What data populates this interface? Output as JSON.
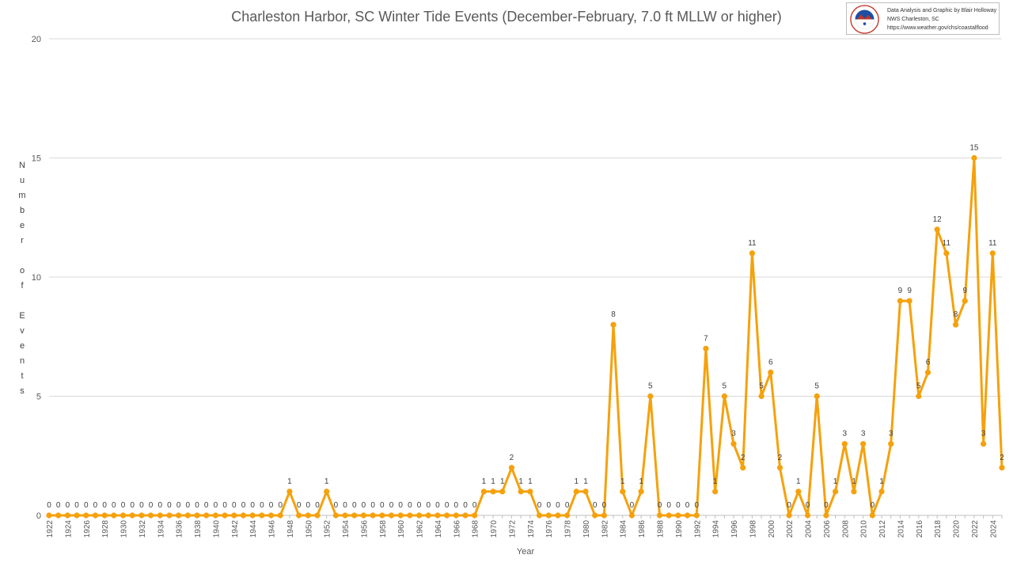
{
  "chart_data": {
    "type": "line",
    "title": "Charleston Harbor, SC Winter Tide Events (December-February, 7.0 ft MLLW or higher)",
    "xlabel": "Year",
    "ylabel": "Number of Events",
    "ylim": [
      0,
      20
    ],
    "yticks": [
      0,
      5,
      10,
      15,
      20
    ],
    "grid": "horizontal",
    "legend": "none",
    "line_color": "#F5A10C",
    "x_start": 1922,
    "x_end": 2025,
    "x_tick_labels": [
      "1922",
      "1924",
      "1926",
      "1928",
      "1930",
      "1932",
      "1934",
      "1936",
      "1938",
      "1940",
      "1942",
      "1944",
      "1946",
      "1948",
      "1950",
      "1952",
      "1954",
      "1956",
      "1958",
      "1960",
      "1962",
      "1964",
      "1966",
      "1968",
      "1970",
      "1972",
      "1974",
      "1976",
      "1978",
      "1980",
      "1982",
      "1984",
      "1986",
      "1988",
      "1990",
      "1992",
      "1994",
      "1996",
      "1998",
      "2000",
      "2002",
      "2004",
      "2006",
      "2008",
      "2010",
      "2012",
      "2014",
      "2016",
      "2018",
      "2020",
      "2022",
      "2024"
    ],
    "series": [
      {
        "values": [
          0,
          0,
          0,
          0,
          0,
          0,
          0,
          0,
          0,
          0,
          0,
          0,
          0,
          0,
          0,
          0,
          0,
          0,
          0,
          0,
          0,
          0,
          0,
          0,
          0,
          0,
          1,
          0,
          0,
          0,
          1,
          0,
          0,
          0,
          0,
          0,
          0,
          0,
          0,
          0,
          0,
          0,
          0,
          0,
          0,
          0,
          0,
          1,
          1,
          1,
          2,
          1,
          1,
          0,
          0,
          0,
          0,
          1,
          1,
          0,
          0,
          8,
          1,
          0,
          1,
          5,
          0,
          0,
          0,
          0,
          0,
          7,
          1,
          5,
          3,
          2,
          11,
          5,
          6,
          2,
          0,
          1,
          0,
          5,
          0,
          1,
          3,
          1,
          3,
          0,
          1,
          3,
          9,
          9,
          5,
          6,
          12,
          11,
          8,
          9,
          15,
          3,
          11,
          2
        ]
      }
    ]
  },
  "credit": {
    "line1": "Data Analysis and Graphic by Blair Holloway",
    "line2": "NWS Charleston, SC",
    "line3": "https://www.weather.gov/chs/coastalflood"
  },
  "logo_text": "NATIONAL WEATHER SERVICE"
}
